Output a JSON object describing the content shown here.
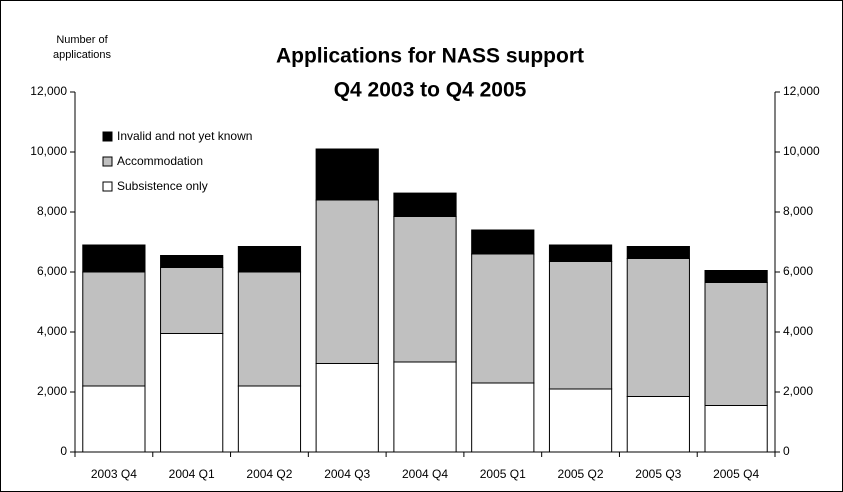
{
  "chart_data": {
    "type": "stacked_bar",
    "title": "Applications for NASS support",
    "subtitle": "Q4 2003 to Q4 2005",
    "y_label": [
      "Number of",
      "applications"
    ],
    "categories": [
      "2003 Q4",
      "2004 Q1",
      "2004 Q2",
      "2004 Q3",
      "2004 Q4",
      "2005 Q1",
      "2005 Q2",
      "2005 Q3",
      "2005 Q4"
    ],
    "series": [
      {
        "name": "Subsistence only",
        "color": "#ffffff",
        "values": [
          2200,
          3950,
          2200,
          2950,
          3000,
          2300,
          2100,
          1850,
          1550
        ]
      },
      {
        "name": "Accommodation",
        "color": "#c0c0c0",
        "values": [
          3800,
          2200,
          3800,
          5450,
          4850,
          4300,
          4250,
          4600,
          4100
        ]
      },
      {
        "name": "Invalid and not yet known",
        "color": "#000000",
        "values": [
          900,
          400,
          850,
          1700,
          780,
          800,
          550,
          400,
          400
        ]
      }
    ],
    "ylim": [
      0,
      12000
    ],
    "yticks": [
      0,
      {
        "value": 2000,
        "label": "2,000"
      },
      {
        "value": 4000,
        "label": "4,000"
      },
      {
        "value": 6000,
        "label": "6,000"
      },
      {
        "value": 8000,
        "label": "8,000"
      },
      {
        "value": 10000,
        "label": "10,000"
      },
      {
        "value": 12000,
        "label": "12,000"
      }
    ],
    "y2lim": [
      0,
      12000
    ],
    "y2ticks": [
      0,
      {
        "value": 2000,
        "label": "2,000"
      },
      {
        "value": 4000,
        "label": "4,000"
      },
      {
        "value": 6000,
        "label": "6,000"
      },
      {
        "value": 8000,
        "label": "8,000"
      },
      {
        "value": 10000,
        "label": "10,000"
      },
      {
        "value": 12000,
        "label": "12,000"
      }
    ],
    "legend": "top-left",
    "grid": false
  }
}
